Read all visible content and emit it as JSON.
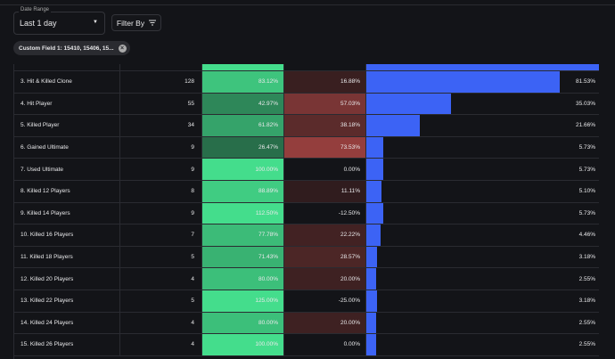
{
  "filters": {
    "date_label": "Date Range",
    "date_value": "Last 1 day",
    "filter_label": "Filter By",
    "chip": "Custom Field 1: 15410, 15406, 15..."
  },
  "colors": {
    "bar": "#3c63f5",
    "green": "#44dd8c",
    "red": "#b84a45"
  },
  "rows": [
    {
      "name": "3. Hit & Killed Clone",
      "count": "128",
      "conv": "83.12%",
      "drop": "16.88%",
      "total": "81.53%",
      "c": 0.8312,
      "t": 0.8153
    },
    {
      "name": "4. Hit Player",
      "count": "55",
      "conv": "42.97%",
      "drop": "57.03%",
      "total": "35.03%",
      "c": 0.4297,
      "t": 0.3503
    },
    {
      "name": "5. Killed Player",
      "count": "34",
      "conv": "61.82%",
      "drop": "38.18%",
      "total": "21.66%",
      "c": 0.6182,
      "t": 0.2166
    },
    {
      "name": "6. Gained Ultimate",
      "count": "9",
      "conv": "26.47%",
      "drop": "73.53%",
      "total": "5.73%",
      "c": 0.2647,
      "t": 0.0573
    },
    {
      "name": "7. Used Ultimate",
      "count": "9",
      "conv": "100.00%",
      "drop": "0.00%",
      "total": "5.73%",
      "c": 1.0,
      "t": 0.0573
    },
    {
      "name": "8. Killed 12 Players",
      "count": "8",
      "conv": "88.89%",
      "drop": "11.11%",
      "total": "5.10%",
      "c": 0.8889,
      "t": 0.051
    },
    {
      "name": "9. Killed 14 Players",
      "count": "9",
      "conv": "112.50%",
      "drop": "-12.50%",
      "total": "5.73%",
      "c": 1.125,
      "t": 0.0573
    },
    {
      "name": "10. Killed 16 Players",
      "count": "7",
      "conv": "77.78%",
      "drop": "22.22%",
      "total": "4.46%",
      "c": 0.7778,
      "t": 0.0446
    },
    {
      "name": "11. Killed 18 Players",
      "count": "5",
      "conv": "71.43%",
      "drop": "28.57%",
      "total": "3.18%",
      "c": 0.7143,
      "t": 0.0318
    },
    {
      "name": "12. Killed 20 Players",
      "count": "4",
      "conv": "80.00%",
      "drop": "20.00%",
      "total": "2.55%",
      "c": 0.8,
      "t": 0.0255
    },
    {
      "name": "13. Killed 22 Players",
      "count": "5",
      "conv": "125.00%",
      "drop": "-25.00%",
      "total": "3.18%",
      "c": 1.25,
      "t": 0.0318
    },
    {
      "name": "14. Killed 24 Players",
      "count": "4",
      "conv": "80.00%",
      "drop": "20.00%",
      "total": "2.55%",
      "c": 0.8,
      "t": 0.0255
    },
    {
      "name": "15. Killed 26 Players",
      "count": "4",
      "conv": "100.00%",
      "drop": "0.00%",
      "total": "2.55%",
      "c": 1.0,
      "t": 0.0255
    }
  ]
}
